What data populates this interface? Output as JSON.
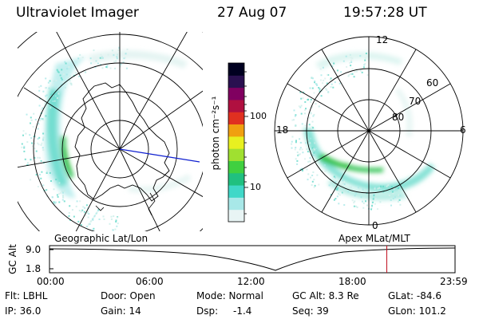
{
  "header": {
    "instrument": "Ultraviolet Imager",
    "date": "27 Aug 07",
    "time": "19:57:28 UT"
  },
  "left_panel": {
    "caption": "Geographic Lat/Lon"
  },
  "right_panel": {
    "caption": "Apex MLat/MLT",
    "mlt_labels": {
      "top": "12",
      "bottom": "0",
      "left": "18",
      "right": "6"
    },
    "lat_labels": [
      "60",
      "70",
      "80"
    ]
  },
  "colorbar": {
    "label": "photon cm⁻²s⁻¹",
    "ticks": [
      "100",
      "10"
    ],
    "scale": "log",
    "colors": [
      "#e8f4f4",
      "#a8e8e8",
      "#40d8c8",
      "#20c080",
      "#40d040",
      "#a0e030",
      "#e8f020",
      "#f0a010",
      "#e03020",
      "#b01040",
      "#800060",
      "#2a1050",
      "#000020"
    ]
  },
  "timeline": {
    "ylabel": "GC Alt",
    "ymax": "9.0",
    "ymin": "1.8",
    "ticks": [
      "00:00",
      "06:00",
      "12:00",
      "18:00",
      "23:59"
    ],
    "marker_hour": 19.96
  },
  "footer": {
    "row1": [
      "Flt: LBHL",
      "Door: Open",
      "Mode: Normal",
      "GC Alt: 8.3 Re",
      "GLat: -84.6"
    ],
    "row2": [
      "IP: 36.0",
      "Gain: 14",
      "Dsp:",
      "-1.4",
      "Seq: 39",
      "GLon: 101.2"
    ]
  }
}
